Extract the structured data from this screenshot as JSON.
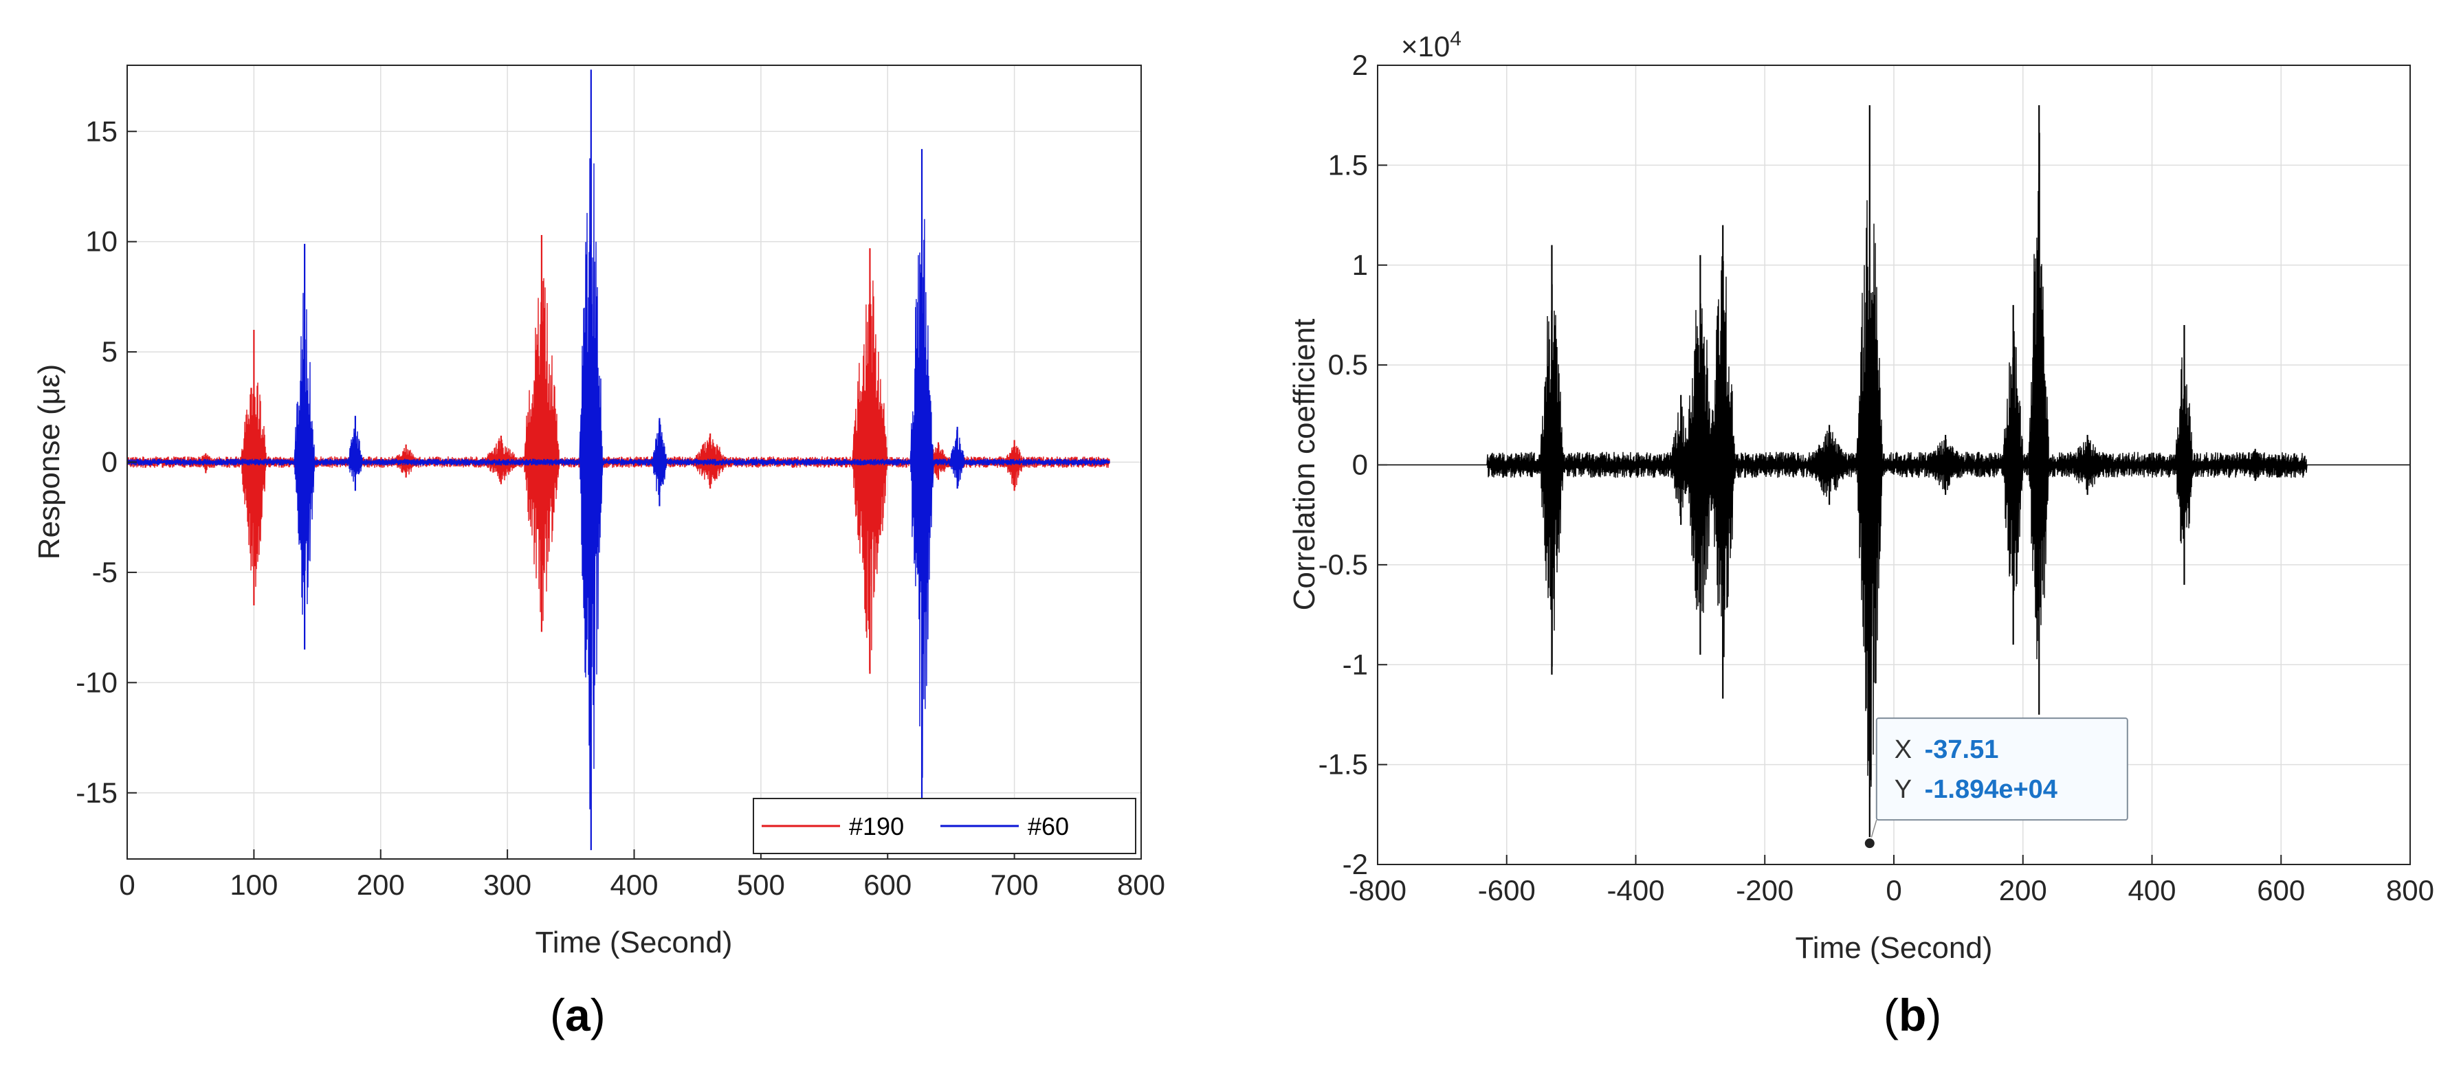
{
  "chart_data": [
    {
      "type": "line",
      "panel": "(a)",
      "caption_letter": "a",
      "xlabel": "Time (Second)",
      "ylabel": "Response (με)",
      "xlim": [
        0,
        800
      ],
      "ylim": [
        -18,
        18
      ],
      "xticks": [
        0,
        100,
        200,
        300,
        400,
        500,
        600,
        700,
        800
      ],
      "yticks": [
        -15,
        -10,
        -5,
        0,
        5,
        10,
        15
      ],
      "grid": true,
      "legend": {
        "placement": "bottom-right",
        "entries": [
          "#190",
          "#60"
        ]
      },
      "series": [
        {
          "name": "#190",
          "color": "#e31a1c",
          "x_range": [
            0,
            775
          ],
          "bursts": [
            {
              "t": 100,
              "width": 10,
              "max": 6.0,
              "min": -6.5
            },
            {
              "t": 327,
              "width": 14,
              "max": 10.3,
              "min": -7.7
            },
            {
              "t": 586,
              "width": 14,
              "max": 9.7,
              "min": -9.6
            },
            {
              "t": 62,
              "width": 8,
              "max": 0.4,
              "min": -0.5
            },
            {
              "t": 220,
              "width": 10,
              "max": 0.8,
              "min": -0.7
            },
            {
              "t": 295,
              "width": 14,
              "max": 1.2,
              "min": -1.0
            },
            {
              "t": 460,
              "width": 14,
              "max": 1.3,
              "min": -1.2
            },
            {
              "t": 640,
              "width": 10,
              "max": 0.9,
              "min": -0.8
            },
            {
              "t": 700,
              "width": 8,
              "max": 1.0,
              "min": -1.3
            }
          ],
          "noise": 0.2
        },
        {
          "name": "#60",
          "color": "#0a14d6",
          "x_range": [
            0,
            775
          ],
          "bursts": [
            {
              "t": 140,
              "width": 8,
              "max": 9.9,
              "min": -8.5
            },
            {
              "t": 366,
              "width": 9,
              "max": 17.8,
              "min": -17.6
            },
            {
              "t": 627,
              "width": 9,
              "max": 14.2,
              "min": -15.6
            },
            {
              "t": 180,
              "width": 6,
              "max": 2.1,
              "min": -1.3
            },
            {
              "t": 420,
              "width": 6,
              "max": 2.0,
              "min": -2.0
            },
            {
              "t": 655,
              "width": 6,
              "max": 1.6,
              "min": -1.2
            }
          ],
          "noise": 0.12
        }
      ]
    },
    {
      "type": "line",
      "panel": "(b)",
      "caption_letter": "b",
      "xlabel": "Time (Second)",
      "ylabel": "Correlation coefficient",
      "y_exponent_label": "×10",
      "y_exponent_power": "4",
      "xlim": [
        -800,
        800
      ],
      "ylim": [
        -2,
        2
      ],
      "y_scale": 10000,
      "xticks": [
        -800,
        -600,
        -400,
        -200,
        0,
        200,
        400,
        600,
        800
      ],
      "yticks": [
        -2,
        -1.5,
        -1,
        -0.5,
        0,
        0.5,
        1,
        1.5,
        2
      ],
      "ytick_labels": [
        "-2",
        "-1.5",
        "-1",
        "-0.5",
        "0",
        "0.5",
        "1",
        "1.5",
        "2"
      ],
      "grid": true,
      "series": [
        {
          "name": "",
          "color": "#000000",
          "x_range": [
            -800,
            800
          ],
          "active_range": [
            -630,
            640
          ],
          "bursts": [
            {
              "t": -530,
              "width": 18,
              "max": 1.1,
              "min": -1.05
            },
            {
              "t": -300,
              "width": 22,
              "max": 1.05,
              "min": -0.95
            },
            {
              "t": -265,
              "width": 20,
              "max": 1.2,
              "min": -1.17
            },
            {
              "t": -37.51,
              "width": 20,
              "max": 1.8,
              "min": -1.894
            },
            {
              "t": 185,
              "width": 16,
              "max": 0.8,
              "min": -0.9
            },
            {
              "t": 225,
              "width": 16,
              "max": 1.8,
              "min": -1.25
            },
            {
              "t": 450,
              "width": 14,
              "max": 0.7,
              "min": -0.6
            },
            {
              "t": -330,
              "width": 16,
              "max": 0.35,
              "min": -0.3
            },
            {
              "t": -100,
              "width": 30,
              "max": 0.2,
              "min": -0.2
            },
            {
              "t": 80,
              "width": 30,
              "max": 0.15,
              "min": -0.15
            },
            {
              "t": 300,
              "width": 30,
              "max": 0.15,
              "min": -0.15
            },
            {
              "t": 560,
              "width": 20,
              "max": 0.08,
              "min": -0.08
            }
          ],
          "noise": 0.05
        }
      ],
      "datatip": {
        "x": -37.51,
        "y": -18940,
        "x_label": "X",
        "y_label": "Y",
        "x_text": "-37.51",
        "y_text": "-1.894e+04"
      }
    }
  ]
}
